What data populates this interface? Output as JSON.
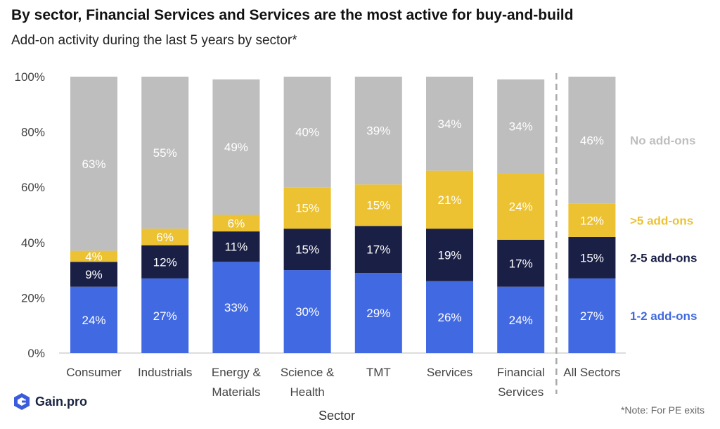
{
  "title": "By sector, Financial Services and Services are the most active for buy-and-build",
  "subtitle": "Add-on activity during the last 5 years by sector*",
  "note": "*Note: For PE exits",
  "brand": {
    "name": "Gain.pro",
    "icon": "gain-pro-logo-icon"
  },
  "chart_data": {
    "type": "bar",
    "stacked": true,
    "categories": [
      "Consumer",
      "Industrials",
      "Energy & Materials",
      "Science & Health",
      "TMT",
      "Services",
      "Financial Services",
      "All Sectors"
    ],
    "category_lines": [
      [
        "Consumer"
      ],
      [
        "Industrials"
      ],
      [
        "Energy &",
        "Materials"
      ],
      [
        "Science &",
        "Health"
      ],
      [
        "TMT"
      ],
      [
        "Services"
      ],
      [
        "Financial",
        "Services"
      ],
      [
        "All Sectors"
      ]
    ],
    "xlabel": "Sector",
    "ylabel": "",
    "ylim": [
      0,
      100
    ],
    "yticks": [
      "0%",
      "20%",
      "40%",
      "60%",
      "80%",
      "100%"
    ],
    "series": [
      {
        "name": "1-2 add-ons",
        "color": "#4169e1",
        "label_color": "#ffffff",
        "values": [
          24,
          27,
          33,
          30,
          29,
          26,
          24,
          27
        ]
      },
      {
        "name": "2-5 add-ons",
        "color": "#1a1f45",
        "label_color": "#ffffff",
        "values": [
          9,
          12,
          11,
          15,
          17,
          19,
          17,
          15
        ]
      },
      {
        "name": ">5 add-ons",
        "color": "#ecc232",
        "label_color": "#ffffff",
        "values": [
          4,
          6,
          6,
          15,
          15,
          21,
          24,
          12
        ]
      },
      {
        "name": "No add-ons",
        "color": "#bebebe",
        "label_color": "#ffffff",
        "values": [
          63,
          55,
          49,
          40,
          39,
          34,
          34,
          46
        ]
      }
    ],
    "legend": {
      "placement": "right",
      "colors": [
        "#4169e1",
        "#1a1f45",
        "#ecc232",
        "#bebebe"
      ]
    },
    "separator_before": "All Sectors",
    "grid": false
  }
}
